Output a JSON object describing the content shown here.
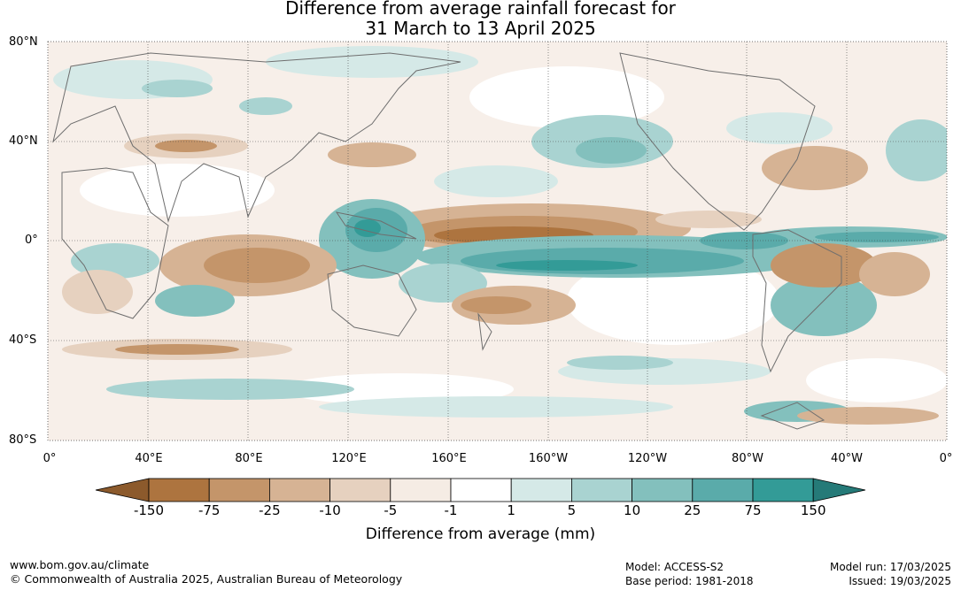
{
  "title_line1": "Difference from average rainfall forecast for",
  "title_line2": "31 March to 13 April 2025",
  "lat_labels": [
    "80°N",
    "40°N",
    "0°",
    "40°S",
    "80°S"
  ],
  "lon_labels": [
    "0°",
    "40°E",
    "80°E",
    "120°E",
    "160°E",
    "160°W",
    "120°W",
    "80°W",
    "40°W",
    "0°"
  ],
  "colorbar": {
    "labels": [
      "-150",
      "-75",
      "-25",
      "-10",
      "-5",
      "-1",
      "1",
      "5",
      "10",
      "25",
      "75",
      "150"
    ],
    "colors": [
      "#8c5a2c",
      "#ad743f",
      "#c4956a",
      "#d6b394",
      "#e6d1bf",
      "#f5ece4",
      "#ffffff",
      "#d5e9e7",
      "#a9d3d1",
      "#83c0bd",
      "#5aabaa",
      "#339b97",
      "#257a78"
    ],
    "unit_label": "Difference from average (mm)"
  },
  "footer": {
    "url": "www.bom.gov.au/climate",
    "copyright": "© Commonwealth of Australia 2025, Australian Bureau of Meteorology",
    "model": "Model: ACCESS-S2",
    "base_period": "Base period: 1981-2018",
    "model_run": "Model run: 17/03/2025",
    "issued": "Issued: 19/03/2025"
  }
}
